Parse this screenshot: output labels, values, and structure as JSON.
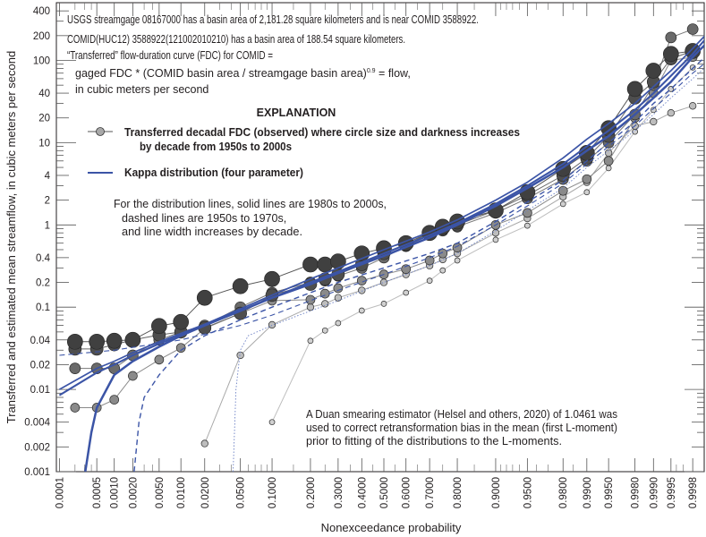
{
  "chart_data": {
    "type": "line",
    "xlabel": "Nonexceedance probability",
    "ylabel": "Transferred and estimated mean streamflow, in cubic meters per second",
    "x_scale": "normal-probability",
    "y_scale": "log",
    "ylim": [
      0.001,
      400
    ],
    "xlim": [
      0.0001,
      0.9998
    ],
    "grid": false,
    "x_ticks": [
      "0.0001",
      "0.0005",
      "0.0010",
      "0.0020",
      "0.0050",
      "0.0100",
      "0.0200",
      "0.0500",
      "0.1000",
      "0.2000",
      "0.3000",
      "0.4000",
      "0.5000",
      "0.6000",
      "0.7000",
      "0.8000",
      "0.9000",
      "0.9500",
      "0.9800",
      "0.9900",
      "0.9950",
      "0.9980",
      "0.9990",
      "0.9995",
      "0.9998"
    ],
    "y_ticks": [
      "400",
      "200",
      "100",
      "40",
      "20",
      "10",
      "4",
      "2",
      "1",
      "0.4",
      "0.2",
      "0.1",
      "0.04",
      "0.02",
      "0.01",
      "0.004",
      "0.002",
      "0.001"
    ],
    "annotation": {
      "line1": "USGS streamgage 08167000 has a basin area of 2,181.28 square kilometers and is near COMID 3588922.",
      "line2": "COMID(HUC12) 3588922(121002010210) has a basin area of 188.54 square kilometers.",
      "line3": "“Transferred” flow-duration curve (FDC) for COMID =",
      "line4a": "gaged FDC * (COMID basin area / streamgage basin area)",
      "line4_exp": "0.9",
      "line4b": " = flow,",
      "line5": "in cubic meters per second"
    },
    "legend": {
      "title": "EXPLANATION",
      "observed_line1": "Transferred decadal FDC (observed) where circle size and darkness increases",
      "observed_line2": "by decade from 1950s to 2000s",
      "kappa": "Kappa distribution (four parameter)",
      "kappa_color": "#3b54a6"
    },
    "note": {
      "line1": "For the distribution lines, solid lines are 1980s to 2000s,",
      "line2": "dashed lines are 1950s to 1970s,",
      "line3": "and line width increases by decade."
    },
    "duan_note": {
      "line1": "A Duan smearing estimator (Helsel and others, 2020) of 1.0461 was",
      "line2": "used to correct retransformation bias in the mean (first L-moment)",
      "line3": "prior to fitting of the distributions to the L-moments."
    },
    "x": [
      0.0002,
      0.0005,
      0.001,
      0.002,
      0.005,
      0.01,
      0.02,
      0.05,
      0.1,
      0.2,
      0.25,
      0.3,
      0.4,
      0.5,
      0.6,
      0.7,
      0.75,
      0.8,
      0.9,
      0.95,
      0.98,
      0.99,
      0.995,
      0.998,
      0.999,
      0.9995,
      0.9998
    ],
    "series": [
      {
        "decade": "1950s",
        "values": [
          null,
          null,
          null,
          null,
          null,
          null,
          null,
          null,
          0.004,
          0.039,
          0.052,
          0.064,
          0.091,
          0.11,
          0.15,
          0.21,
          0.28,
          0.37,
          0.66,
          0.98,
          1.8,
          2.5,
          4.9,
          13.6,
          25,
          45,
          82
        ]
      },
      {
        "decade": "1960s",
        "values": [
          null,
          null,
          null,
          null,
          null,
          null,
          0.0022,
          0.026,
          0.061,
          0.1,
          0.11,
          0.13,
          0.16,
          0.2,
          0.25,
          0.32,
          0.38,
          0.45,
          0.8,
          1.2,
          2.2,
          3.3,
          7.5,
          16,
          18,
          23,
          28
        ]
      },
      {
        "decade": "1970s",
        "values": [
          0.006,
          0.006,
          0.0075,
          0.0146,
          0.023,
          0.032,
          0.055,
          0.084,
          0.12,
          0.123,
          0.146,
          0.17,
          0.21,
          0.25,
          0.29,
          0.37,
          0.45,
          0.53,
          1.0,
          1.4,
          2.6,
          3.6,
          6,
          20,
          40,
          100,
          110
        ]
      },
      {
        "decade": "1980s",
        "values": [
          0.018,
          0.018,
          0.018,
          0.026,
          0.04,
          0.05,
          0.06,
          0.1,
          0.15,
          0.2,
          0.21,
          0.24,
          0.3,
          0.4,
          0.55,
          0.75,
          0.85,
          0.95,
          1.4,
          2.1,
          3.6,
          6,
          10,
          22,
          50,
          190,
          240
        ]
      },
      {
        "decade": "1990s",
        "values": [
          0.031,
          0.031,
          0.035,
          0.04,
          0.046,
          0.05,
          0.056,
          0.084,
          0.14,
          0.19,
          0.22,
          0.25,
          0.33,
          0.45,
          0.57,
          0.8,
          0.9,
          1.0,
          1.5,
          2.3,
          4.0,
          6.5,
          12,
          35,
          55,
          105,
          130
        ]
      },
      {
        "decade": "2000s",
        "values": [
          0.038,
          0.038,
          0.039,
          0.04,
          0.059,
          0.066,
          0.13,
          0.18,
          0.22,
          0.33,
          0.33,
          0.36,
          0.45,
          0.52,
          0.6,
          0.8,
          0.95,
          1.1,
          1.5,
          2.5,
          4.8,
          7.5,
          15,
          45,
          75,
          120,
          130
        ]
      }
    ],
    "kappa_series": [
      {
        "decade": "1950s",
        "style": "dotted",
        "points": [
          [
            0.042,
            0.001
          ],
          [
            0.045,
            0.01
          ],
          [
            0.05,
            0.03
          ],
          [
            0.06,
            0.045
          ],
          [
            0.1,
            0.06
          ],
          [
            0.2,
            0.09
          ],
          [
            0.3,
            0.12
          ],
          [
            0.5,
            0.2
          ],
          [
            0.7,
            0.32
          ],
          [
            0.8,
            0.45
          ],
          [
            0.9,
            0.85
          ],
          [
            0.95,
            1.5
          ],
          [
            0.98,
            2.8
          ],
          [
            0.99,
            5
          ],
          [
            0.995,
            8
          ],
          [
            0.998,
            14
          ],
          [
            0.999,
            22
          ],
          [
            0.9995,
            35
          ],
          [
            0.9998,
            60
          ],
          [
            0.9999,
            90
          ]
        ]
      },
      {
        "decade": "1960s",
        "style": "dashed",
        "points": [
          [
            0.0001,
            0.026
          ],
          [
            0.001,
            0.03
          ],
          [
            0.01,
            0.04
          ],
          [
            0.05,
            0.06
          ],
          [
            0.1,
            0.08
          ],
          [
            0.2,
            0.12
          ],
          [
            0.3,
            0.16
          ],
          [
            0.5,
            0.25
          ],
          [
            0.7,
            0.4
          ],
          [
            0.8,
            0.55
          ],
          [
            0.9,
            1.0
          ],
          [
            0.95,
            1.7
          ],
          [
            0.98,
            3.2
          ],
          [
            0.99,
            5.5
          ],
          [
            0.995,
            9
          ],
          [
            0.998,
            16
          ],
          [
            0.999,
            26
          ],
          [
            0.9995,
            40
          ],
          [
            0.9998,
            70
          ],
          [
            0.9999,
            100
          ]
        ]
      },
      {
        "decade": "1970s",
        "style": "dashed",
        "points": [
          [
            0.0021,
            0.001
          ],
          [
            0.0025,
            0.004
          ],
          [
            0.003,
            0.008
          ],
          [
            0.005,
            0.015
          ],
          [
            0.01,
            0.03
          ],
          [
            0.02,
            0.045
          ],
          [
            0.05,
            0.07
          ],
          [
            0.1,
            0.1
          ],
          [
            0.2,
            0.15
          ],
          [
            0.3,
            0.2
          ],
          [
            0.5,
            0.3
          ],
          [
            0.7,
            0.45
          ],
          [
            0.8,
            0.6
          ],
          [
            0.9,
            1.1
          ],
          [
            0.95,
            1.9
          ],
          [
            0.98,
            3.5
          ],
          [
            0.99,
            6
          ],
          [
            0.995,
            10
          ],
          [
            0.998,
            18
          ],
          [
            0.999,
            30
          ],
          [
            0.9995,
            45
          ],
          [
            0.9998,
            80
          ],
          [
            0.9999,
            120
          ]
        ]
      },
      {
        "decade": "1980s",
        "style": "solid",
        "points": [
          [
            0.0001,
            0.01
          ],
          [
            0.0005,
            0.018
          ],
          [
            0.001,
            0.022
          ],
          [
            0.002,
            0.028
          ],
          [
            0.005,
            0.038
          ],
          [
            0.01,
            0.048
          ],
          [
            0.02,
            0.062
          ],
          [
            0.05,
            0.095
          ],
          [
            0.1,
            0.14
          ],
          [
            0.2,
            0.22
          ],
          [
            0.3,
            0.3
          ],
          [
            0.5,
            0.5
          ],
          [
            0.7,
            0.82
          ],
          [
            0.8,
            1.15
          ],
          [
            0.9,
            2.0
          ],
          [
            0.95,
            3.3
          ],
          [
            0.98,
            6.5
          ],
          [
            0.99,
            11
          ],
          [
            0.995,
            17
          ],
          [
            0.998,
            30
          ],
          [
            0.999,
            48
          ],
          [
            0.9995,
            75
          ],
          [
            0.9998,
            140
          ],
          [
            0.9999,
            220
          ]
        ]
      },
      {
        "decade": "1990s",
        "style": "solid",
        "points": [
          [
            0.0001,
            0.0085
          ],
          [
            0.0005,
            0.016
          ],
          [
            0.001,
            0.02
          ],
          [
            0.002,
            0.026
          ],
          [
            0.005,
            0.036
          ],
          [
            0.01,
            0.046
          ],
          [
            0.02,
            0.06
          ],
          [
            0.05,
            0.09
          ],
          [
            0.1,
            0.13
          ],
          [
            0.2,
            0.2
          ],
          [
            0.3,
            0.27
          ],
          [
            0.5,
            0.45
          ],
          [
            0.7,
            0.75
          ],
          [
            0.8,
            1.05
          ],
          [
            0.9,
            1.8
          ],
          [
            0.95,
            3
          ],
          [
            0.98,
            5.5
          ],
          [
            0.99,
            9
          ],
          [
            0.995,
            14
          ],
          [
            0.998,
            25
          ],
          [
            0.999,
            40
          ],
          [
            0.9995,
            65
          ],
          [
            0.9998,
            120
          ],
          [
            0.9999,
            200
          ]
        ]
      },
      {
        "decade": "2000s",
        "style": "solid",
        "points": [
          [
            0.00031,
            0.001
          ],
          [
            0.0004,
            0.003
          ],
          [
            0.0005,
            0.006
          ],
          [
            0.001,
            0.015
          ],
          [
            0.002,
            0.022
          ],
          [
            0.005,
            0.033
          ],
          [
            0.01,
            0.045
          ],
          [
            0.02,
            0.06
          ],
          [
            0.05,
            0.09
          ],
          [
            0.1,
            0.13
          ],
          [
            0.2,
            0.19
          ],
          [
            0.3,
            0.26
          ],
          [
            0.5,
            0.42
          ],
          [
            0.7,
            0.7
          ],
          [
            0.8,
            1.0
          ],
          [
            0.9,
            1.7
          ],
          [
            0.95,
            2.8
          ],
          [
            0.98,
            5
          ],
          [
            0.99,
            8
          ],
          [
            0.995,
            12
          ],
          [
            0.998,
            22
          ],
          [
            0.999,
            35
          ],
          [
            0.9995,
            55
          ],
          [
            0.9998,
            110
          ],
          [
            0.9999,
            170
          ]
        ]
      }
    ]
  }
}
